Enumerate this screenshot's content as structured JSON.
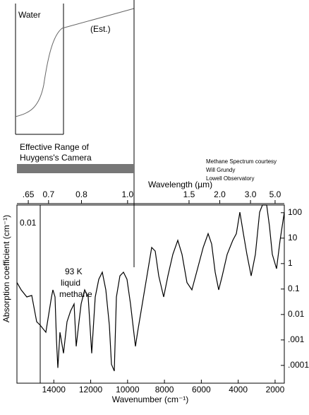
{
  "chart_data": {
    "type": "line",
    "x_label": "Wavenumber (cm⁻¹)",
    "y_label": "Absorption coefficient (cm⁻¹)",
    "top_axis_label": "Wavelength (µm)",
    "x": [
      16000,
      15770,
      15464,
      15197,
      14929,
      14737,
      14431,
      14125,
      14049,
      13934,
      13857,
      13781,
      13666,
      13475,
      13283,
      13092,
      12901,
      12786,
      12633,
      12518,
      12327,
      12136,
      11944,
      11753,
      11562,
      11370,
      11179,
      10988,
      10873,
      10720,
      10605,
      10414,
      10222,
      10031,
      9840,
      9572,
      9457,
      9266,
      8884,
      8692,
      8501,
      8310,
      8042,
      7812,
      7545,
      7277,
      7047,
      6779,
      6512,
      6206,
      5900,
      5632,
      5441,
      5249,
      5058,
      4867,
      4599,
      4294,
      4102,
      3911,
      3720,
      3528,
      3299,
      3069,
      2840,
      2687,
      2457,
      2304,
      2151,
      1922,
      1730,
      1500
    ],
    "values": [
      0.18,
      0.093,
      0.049,
      0.056,
      0.0052,
      0.0038,
      0.002,
      0.049,
      0.093,
      0.049,
      0.00105,
      8e-05,
      0.002,
      0.0003,
      0.0052,
      0.0136,
      0.026,
      0.00056,
      0.0052,
      0.026,
      0.093,
      0.049,
      0.0003,
      0.049,
      0.24,
      0.46,
      0.093,
      0.0038,
      0.00011,
      6e-05,
      0.049,
      0.33,
      0.46,
      0.24,
      0.026,
      0.00056,
      0.002,
      0.0136,
      0.63,
      4.3,
      3.1,
      0.33,
      0.049,
      0.33,
      2.3,
      8.2,
      2.3,
      0.18,
      0.093,
      0.63,
      4.3,
      15,
      5.9,
      0.46,
      0.093,
      0.33,
      2.3,
      8.2,
      15,
      105,
      15,
      2.3,
      0.33,
      2.3,
      105,
      200,
      200,
      29,
      2.3,
      0.63,
      8.2,
      105
    ],
    "color": "#000000",
    "xlim": [
      16000,
      1500
    ],
    "ylim": [
      2e-05,
      200
    ],
    "ylog": true,
    "xticks": [
      14000,
      12000,
      10000,
      8000,
      6000,
      4000,
      2000
    ],
    "yticks": [
      100,
      10,
      1,
      0.1,
      0.01,
      {
        "value": 0.001,
        "label": ".001"
      },
      {
        "value": 0.0001,
        "label": ".0001"
      }
    ],
    "top_ticks": [
      {
        "value": 0.65,
        "label": ".65"
      },
      0.7,
      0.8,
      {
        "value": 1,
        "label": "1.0"
      },
      1.5,
      {
        "value": 2,
        "label": "2.0"
      },
      {
        "value": 3,
        "label": "3.0"
      },
      {
        "value": 5,
        "label": "5.0"
      }
    ],
    "annotations": {
      "box_label": "0.01",
      "sample": [
        "93 K",
        "liquid",
        "methane"
      ],
      "water": "Water",
      "estimate": "(Est.)",
      "camera": [
        "Effective Range of",
        "Huygens's Camera"
      ],
      "credit": [
        "Methane Spectrum courtesy",
        "Will Grundy",
        "Lowell Observatory"
      ]
    }
  }
}
